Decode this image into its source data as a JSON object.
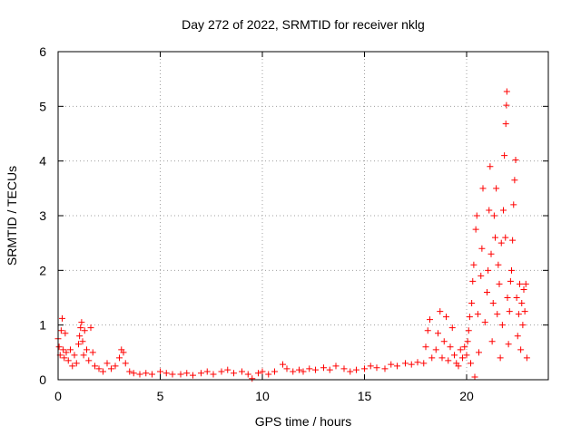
{
  "chart_data": {
    "type": "scatter",
    "title": "Day 272 of 2022, SRMTID for receiver nklg",
    "xlabel": "GPS time / hours",
    "ylabel": "SRMTID / TECUs",
    "xlim": [
      0,
      24
    ],
    "ylim": [
      0,
      6
    ],
    "xticks": [
      0,
      5,
      10,
      15,
      20
    ],
    "yticks": [
      0,
      1,
      2,
      3,
      4,
      5,
      6
    ],
    "grid": true,
    "marker": "+",
    "colors": {
      "series": "#ff0000",
      "grid": "#a0a0a0",
      "axes": "#000000"
    },
    "series": [
      {
        "name": "nklg",
        "points": [
          [
            0.0,
            0.75
          ],
          [
            0.05,
            0.6
          ],
          [
            0.1,
            0.45
          ],
          [
            0.15,
            0.9
          ],
          [
            0.2,
            1.12
          ],
          [
            0.25,
            0.55
          ],
          [
            0.3,
            0.4
          ],
          [
            0.35,
            0.85
          ],
          [
            0.4,
            0.5
          ],
          [
            0.5,
            0.35
          ],
          [
            0.6,
            0.55
          ],
          [
            0.7,
            0.25
          ],
          [
            0.8,
            0.45
          ],
          [
            0.9,
            0.3
          ],
          [
            1.0,
            0.65
          ],
          [
            1.05,
            0.8
          ],
          [
            1.1,
            0.95
          ],
          [
            1.15,
            1.05
          ],
          [
            1.2,
            0.7
          ],
          [
            1.25,
            0.45
          ],
          [
            1.3,
            0.9
          ],
          [
            1.4,
            0.55
          ],
          [
            1.5,
            0.35
          ],
          [
            1.6,
            0.95
          ],
          [
            1.7,
            0.5
          ],
          [
            1.8,
            0.25
          ],
          [
            2.0,
            0.2
          ],
          [
            2.2,
            0.15
          ],
          [
            2.4,
            0.3
          ],
          [
            2.6,
            0.2
          ],
          [
            2.8,
            0.25
          ],
          [
            3.0,
            0.4
          ],
          [
            3.1,
            0.55
          ],
          [
            3.2,
            0.5
          ],
          [
            3.3,
            0.3
          ],
          [
            3.5,
            0.15
          ],
          [
            3.7,
            0.12
          ],
          [
            4.0,
            0.1
          ],
          [
            4.3,
            0.12
          ],
          [
            4.6,
            0.1
          ],
          [
            5.0,
            0.15
          ],
          [
            5.3,
            0.12
          ],
          [
            5.6,
            0.1
          ],
          [
            6.0,
            0.1
          ],
          [
            6.3,
            0.12
          ],
          [
            6.6,
            0.08
          ],
          [
            7.0,
            0.12
          ],
          [
            7.3,
            0.15
          ],
          [
            7.6,
            0.1
          ],
          [
            8.0,
            0.15
          ],
          [
            8.3,
            0.18
          ],
          [
            8.6,
            0.12
          ],
          [
            9.0,
            0.15
          ],
          [
            9.3,
            0.1
          ],
          [
            9.5,
            0.02
          ],
          [
            9.8,
            0.12
          ],
          [
            10.0,
            0.15
          ],
          [
            10.3,
            0.1
          ],
          [
            10.6,
            0.15
          ],
          [
            11.0,
            0.28
          ],
          [
            11.2,
            0.2
          ],
          [
            11.5,
            0.15
          ],
          [
            11.8,
            0.18
          ],
          [
            12.0,
            0.15
          ],
          [
            12.3,
            0.2
          ],
          [
            12.6,
            0.18
          ],
          [
            13.0,
            0.22
          ],
          [
            13.3,
            0.18
          ],
          [
            13.6,
            0.25
          ],
          [
            14.0,
            0.2
          ],
          [
            14.3,
            0.15
          ],
          [
            14.6,
            0.18
          ],
          [
            15.0,
            0.2
          ],
          [
            15.3,
            0.25
          ],
          [
            15.6,
            0.22
          ],
          [
            16.0,
            0.2
          ],
          [
            16.3,
            0.28
          ],
          [
            16.6,
            0.25
          ],
          [
            17.0,
            0.3
          ],
          [
            17.3,
            0.28
          ],
          [
            17.6,
            0.32
          ],
          [
            17.9,
            0.3
          ],
          [
            18.0,
            0.6
          ],
          [
            18.1,
            0.9
          ],
          [
            18.2,
            1.1
          ],
          [
            18.3,
            0.4
          ],
          [
            18.5,
            0.55
          ],
          [
            18.6,
            0.85
          ],
          [
            18.7,
            1.25
          ],
          [
            18.8,
            0.4
          ],
          [
            18.9,
            0.7
          ],
          [
            19.0,
            1.15
          ],
          [
            19.1,
            0.35
          ],
          [
            19.2,
            0.6
          ],
          [
            19.3,
            0.95
          ],
          [
            19.4,
            0.45
          ],
          [
            19.5,
            0.3
          ],
          [
            19.6,
            0.25
          ],
          [
            19.7,
            0.55
          ],
          [
            19.8,
            0.4
          ],
          [
            19.9,
            0.6
          ],
          [
            20.0,
            0.45
          ],
          [
            20.05,
            0.7
          ],
          [
            20.1,
            0.9
          ],
          [
            20.15,
            1.15
          ],
          [
            20.2,
            0.3
          ],
          [
            20.25,
            1.4
          ],
          [
            20.3,
            1.8
          ],
          [
            20.35,
            2.1
          ],
          [
            20.4,
            0.05
          ],
          [
            20.45,
            2.75
          ],
          [
            20.5,
            3.0
          ],
          [
            20.55,
            1.2
          ],
          [
            20.6,
            0.5
          ],
          [
            20.7,
            1.9
          ],
          [
            20.75,
            2.4
          ],
          [
            20.8,
            3.5
          ],
          [
            20.9,
            1.05
          ],
          [
            21.0,
            1.6
          ],
          [
            21.05,
            2.0
          ],
          [
            21.1,
            3.1
          ],
          [
            21.15,
            3.9
          ],
          [
            21.2,
            2.3
          ],
          [
            21.25,
            0.7
          ],
          [
            21.3,
            1.4
          ],
          [
            21.35,
            3.0
          ],
          [
            21.4,
            2.6
          ],
          [
            21.45,
            3.5
          ],
          [
            21.5,
            1.2
          ],
          [
            21.55,
            2.1
          ],
          [
            21.6,
            1.75
          ],
          [
            21.65,
            0.4
          ],
          [
            21.7,
            2.5
          ],
          [
            21.75,
            1.0
          ],
          [
            21.8,
            3.1
          ],
          [
            21.85,
            4.1
          ],
          [
            21.9,
            2.6
          ],
          [
            21.92,
            4.68
          ],
          [
            21.95,
            5.02
          ],
          [
            21.97,
            5.27
          ],
          [
            22.0,
            1.5
          ],
          [
            22.05,
            0.65
          ],
          [
            22.1,
            1.25
          ],
          [
            22.15,
            1.8
          ],
          [
            22.2,
            2.0
          ],
          [
            22.25,
            2.55
          ],
          [
            22.3,
            3.2
          ],
          [
            22.35,
            3.65
          ],
          [
            22.4,
            4.02
          ],
          [
            22.45,
            1.5
          ],
          [
            22.5,
            0.8
          ],
          [
            22.55,
            1.2
          ],
          [
            22.6,
            1.75
          ],
          [
            22.65,
            0.55
          ],
          [
            22.7,
            1.4
          ],
          [
            22.75,
            1.0
          ],
          [
            22.8,
            1.65
          ],
          [
            22.85,
            1.25
          ],
          [
            22.9,
            1.75
          ],
          [
            22.95,
            0.4
          ]
        ]
      }
    ]
  }
}
